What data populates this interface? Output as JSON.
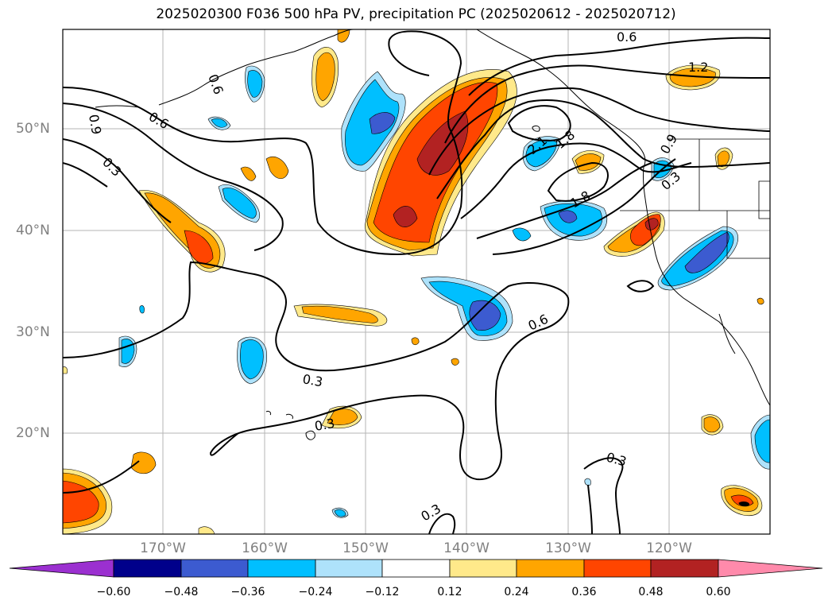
{
  "title": "2025020300 F036 500 hPa PV, precipitation PC (2025020612 - 2025020712)",
  "map": {
    "lat_labels": [
      "50°N",
      "40°N",
      "30°N",
      "20°N"
    ],
    "lon_labels": [
      "170°W",
      "160°W",
      "150°W",
      "140°W",
      "130°W",
      "120°W"
    ],
    "contour_labels": [
      "0.6",
      "0.6",
      "0.9",
      "0.3",
      "0.6",
      "1.2",
      "2.1",
      "1.8",
      "1.8",
      "0.9",
      "0.3",
      "0.6",
      "0.3",
      "0.3",
      "0.3",
      "0.3"
    ]
  },
  "colorbar": {
    "ticks": [
      "−0.60",
      "−0.48",
      "−0.36",
      "−0.24",
      "−0.12",
      "0.12",
      "0.24",
      "0.36",
      "0.48",
      "0.60"
    ],
    "colors": [
      "#9b30d0",
      "#00008b",
      "#3c5bd0",
      "#00bfff",
      "#aee2fb",
      "#ffffff",
      "#ffe98a",
      "#ffa500",
      "#ff4500",
      "#b22222",
      "#ff8aab"
    ]
  }
}
